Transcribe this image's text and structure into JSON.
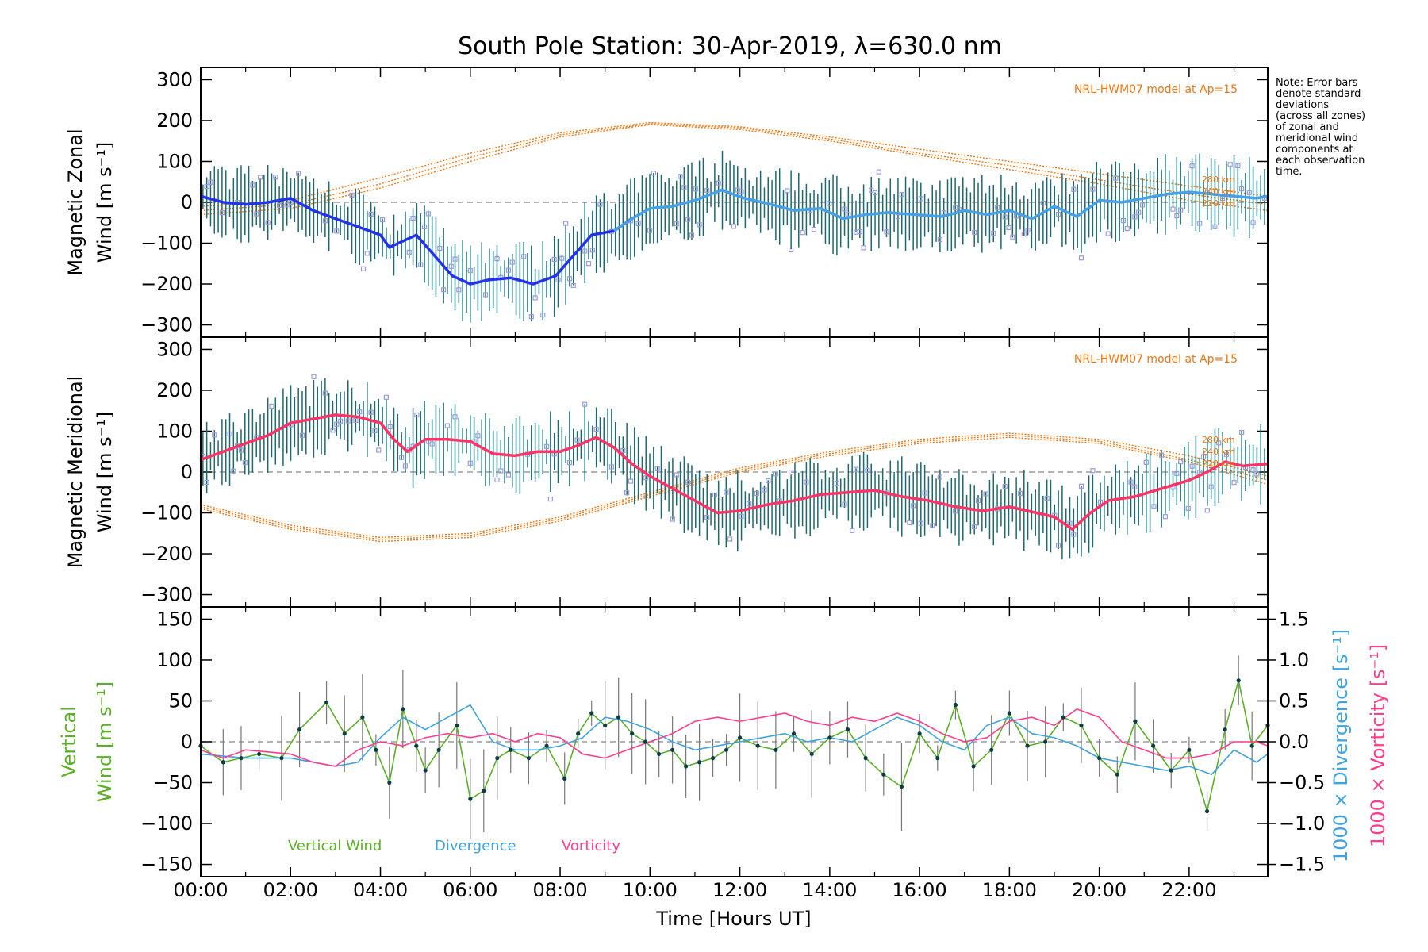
{
  "title": "South Pole Station: 30-Apr-2019, λ=630.0 nm",
  "note_lines": [
    "Note: Error bars",
    "denote standard",
    "deviations",
    "(across all zones)",
    "of zonal and",
    "meridional wind",
    "components at",
    "each observation",
    "time."
  ],
  "colors": {
    "zonal_line": "#2233ee",
    "zonal_line_late": "#44a0e8",
    "meridional_line": "#ff3366",
    "model": "#ee7711",
    "errorbar": "#1a6a70",
    "scatter": "#9c9cdc",
    "zero_line": "#888888",
    "vertical": "#5bb028",
    "divergence": "#3fa3e0",
    "vorticity": "#ff3d8c",
    "vertical_point": "#0c3b4a",
    "vertical_err": "#777777"
  },
  "chart_data": [
    {
      "panel": "zonal",
      "type": "line",
      "ylabel_lines": [
        "Magnetic Zonal",
        "Wind [m s⁻¹]"
      ],
      "ylim": [
        -330,
        330
      ],
      "yticks": [
        300,
        200,
        100,
        0,
        -100,
        -200,
        -300
      ],
      "xlim": [
        0,
        23.75
      ],
      "model_label": "NRL-HWM07 model at Ap=15",
      "model_alt_labels": [
        "280 km",
        "240 km",
        "220 km"
      ],
      "series": [
        {
          "name": "Zonal wind",
          "x": [
            0,
            0.5,
            1,
            1.5,
            2,
            2.5,
            3,
            3.5,
            4,
            4.2,
            4.5,
            4.8,
            5.2,
            5.6,
            6.0,
            6.4,
            6.9,
            7.4,
            7.9,
            8.3,
            8.7,
            9.2,
            9.6,
            10.0,
            10.5,
            11.0,
            11.6,
            12.1,
            12.7,
            13.2,
            13.8,
            14.3,
            14.8,
            15.3,
            15.9,
            16.5,
            17.0,
            17.5,
            18.0,
            18.5,
            19.0,
            19.5,
            20.0,
            20.5,
            21.0,
            21.5,
            22.0,
            22.5,
            23.0,
            23.5,
            23.75
          ],
          "y": [
            15,
            0,
            -5,
            0,
            10,
            -20,
            -40,
            -60,
            -80,
            -110,
            -95,
            -80,
            -130,
            -180,
            -200,
            -190,
            -185,
            -200,
            -180,
            -130,
            -80,
            -70,
            -40,
            -15,
            -10,
            5,
            30,
            10,
            -5,
            -20,
            -15,
            -40,
            -30,
            -25,
            -30,
            -35,
            -20,
            -30,
            -20,
            -40,
            -10,
            -35,
            5,
            0,
            10,
            20,
            25,
            20,
            15,
            10,
            15
          ]
        },
        {
          "name": "Model 280 km",
          "x": [
            0,
            2,
            4,
            6,
            8,
            10,
            12,
            14,
            16,
            18,
            20,
            22,
            23.75
          ],
          "y": [
            -10,
            5,
            60,
            120,
            170,
            195,
            185,
            160,
            130,
            100,
            70,
            40,
            15
          ]
        },
        {
          "name": "Model 240 km",
          "x": [
            0,
            2,
            4,
            6,
            8,
            10,
            12,
            14,
            16,
            18,
            20,
            22,
            23.75
          ],
          "y": [
            -20,
            -5,
            45,
            110,
            165,
            192,
            182,
            155,
            120,
            90,
            55,
            20,
            -5
          ]
        },
        {
          "name": "Model 220 km",
          "x": [
            0,
            2,
            4,
            6,
            8,
            10,
            12,
            14,
            16,
            18,
            20,
            22,
            23.75
          ],
          "y": [
            -30,
            -15,
            35,
            100,
            160,
            190,
            178,
            150,
            115,
            80,
            45,
            5,
            -20
          ]
        }
      ]
    },
    {
      "panel": "meridional",
      "type": "line",
      "ylabel_lines": [
        "Magnetic Meridional",
        "Wind [m s⁻¹]"
      ],
      "ylim": [
        -330,
        330
      ],
      "yticks": [
        300,
        200,
        100,
        0,
        -100,
        -200,
        -300
      ],
      "xlim": [
        0,
        23.75
      ],
      "model_label": "NRL-HWM07 model at Ap=15",
      "model_alt_labels": [
        "280 km",
        "240 km",
        "220 km"
      ],
      "series": [
        {
          "name": "Meridional wind",
          "x": [
            0,
            0.5,
            1,
            1.5,
            2,
            2.5,
            3,
            3.5,
            4,
            4.3,
            4.6,
            5.0,
            5.5,
            6.0,
            6.5,
            7.0,
            7.5,
            8.0,
            8.4,
            8.8,
            9.2,
            9.6,
            10.0,
            10.5,
            11.0,
            11.5,
            12.0,
            12.6,
            13.2,
            13.8,
            14.4,
            15.0,
            15.6,
            16.2,
            16.8,
            17.4,
            18.0,
            18.6,
            19.0,
            19.4,
            19.8,
            20.2,
            20.8,
            21.4,
            22.0,
            22.4,
            22.8,
            23.2,
            23.75
          ],
          "y": [
            30,
            50,
            70,
            90,
            120,
            130,
            140,
            135,
            120,
            80,
            50,
            80,
            80,
            75,
            45,
            40,
            50,
            50,
            65,
            85,
            60,
            20,
            -10,
            -40,
            -70,
            -100,
            -95,
            -80,
            -70,
            -55,
            -50,
            -45,
            -60,
            -70,
            -85,
            -95,
            -85,
            -100,
            -110,
            -140,
            -100,
            -70,
            -60,
            -40,
            -20,
            0,
            25,
            15,
            20
          ]
        },
        {
          "name": "Model 280 km",
          "x": [
            0,
            2,
            4,
            6,
            8,
            10,
            12,
            14,
            16,
            18,
            20,
            22,
            23.75
          ],
          "y": [
            -80,
            -130,
            -160,
            -150,
            -110,
            -50,
            10,
            50,
            80,
            95,
            80,
            40,
            -10
          ]
        },
        {
          "name": "Model 240 km",
          "x": [
            0,
            2,
            4,
            6,
            8,
            10,
            12,
            14,
            16,
            18,
            20,
            22,
            23.75
          ],
          "y": [
            -85,
            -135,
            -165,
            -155,
            -115,
            -55,
            5,
            45,
            75,
            90,
            75,
            30,
            -20
          ]
        },
        {
          "name": "Model 220 km",
          "x": [
            0,
            2,
            4,
            6,
            8,
            10,
            12,
            14,
            16,
            18,
            20,
            22,
            23.75
          ],
          "y": [
            -90,
            -140,
            -170,
            -160,
            -120,
            -60,
            0,
            40,
            70,
            85,
            70,
            25,
            -30
          ]
        }
      ]
    },
    {
      "panel": "vertical",
      "type": "line",
      "ylabel_lines": [
        "Vertical",
        "Wind [m s⁻¹]"
      ],
      "right_labels": [
        "1000 × Divergence [s⁻¹]",
        "1000 × Vorticity [s⁻¹]"
      ],
      "ylim": [
        -165,
        165
      ],
      "yticks": [
        150,
        100,
        50,
        0,
        -50,
        -100,
        -150
      ],
      "y2lim": [
        -1.65,
        1.65
      ],
      "y2ticks": [
        1.5,
        1.0,
        0.5,
        0.0,
        -0.5,
        -1.0,
        -1.5
      ],
      "y2tick_labels": [
        "1.5",
        "1.0",
        "0.5",
        "0.0",
        "−0.5",
        "−1.0",
        "−1.5"
      ],
      "xlim": [
        0,
        23.75
      ],
      "xticks": [
        0,
        2,
        4,
        6,
        8,
        10,
        12,
        14,
        16,
        18,
        20,
        22
      ],
      "xtick_labels": [
        "00:00",
        "02:00",
        "04:00",
        "06:00",
        "08:00",
        "10:00",
        "12:00",
        "14:00",
        "16:00",
        "18:00",
        "20:00",
        "22:00"
      ],
      "xlabel": "Time [Hours UT]",
      "legend": [
        "Vertical Wind",
        "Divergence",
        "Vorticity"
      ],
      "series": [
        {
          "name": "Vertical Wind",
          "axis": "left",
          "x": [
            0,
            0.5,
            0.9,
            1.3,
            1.8,
            2.2,
            2.8,
            3.2,
            3.6,
            3.9,
            4.2,
            4.5,
            4.8,
            5.0,
            5.3,
            5.7,
            6.0,
            6.3,
            6.6,
            6.9,
            7.3,
            7.7,
            8.1,
            8.4,
            8.7,
            9.0,
            9.3,
            9.6,
            9.9,
            10.2,
            10.5,
            10.8,
            11.1,
            11.4,
            11.7,
            12.0,
            12.4,
            12.8,
            13.2,
            13.6,
            14.0,
            14.4,
            14.8,
            15.2,
            15.6,
            16.0,
            16.4,
            16.8,
            17.2,
            17.6,
            18.0,
            18.4,
            18.8,
            19.2,
            19.6,
            20.0,
            20.4,
            20.8,
            21.2,
            21.6,
            22.0,
            22.4,
            22.8,
            23.1,
            23.4,
            23.75
          ],
          "y": [
            -5,
            -25,
            -20,
            -15,
            -20,
            15,
            48,
            10,
            30,
            -10,
            -50,
            40,
            -5,
            -35,
            -10,
            20,
            -70,
            -60,
            -20,
            -10,
            -20,
            -5,
            -45,
            10,
            35,
            20,
            30,
            10,
            0,
            -15,
            -10,
            -30,
            -25,
            -20,
            -10,
            5,
            -5,
            -10,
            10,
            -15,
            5,
            15,
            -20,
            -40,
            -55,
            10,
            -20,
            45,
            -30,
            -10,
            35,
            -5,
            0,
            30,
            20,
            -20,
            -40,
            25,
            -5,
            -35,
            -10,
            -85,
            15,
            75,
            -5,
            20
          ]
        },
        {
          "name": "Divergence",
          "axis": "right",
          "x": [
            0,
            1,
            2,
            3,
            3.5,
            4,
            4.5,
            5,
            5.5,
            6,
            6.5,
            7,
            7.5,
            8,
            8.5,
            9,
            9.5,
            10,
            10.5,
            11,
            11.5,
            12,
            12.5,
            13,
            13.5,
            14,
            14.5,
            15,
            15.5,
            16,
            16.5,
            17,
            17.5,
            18,
            18.5,
            19,
            19.5,
            20,
            20.5,
            21,
            21.5,
            22,
            22.5,
            23,
            23.5,
            23.75
          ],
          "y": [
            -0.15,
            -0.2,
            -0.2,
            -0.3,
            -0.25,
            0.05,
            0.3,
            0.15,
            0.3,
            0.45,
            0.0,
            -0.1,
            -0.1,
            -0.05,
            0.05,
            0.3,
            0.25,
            0.15,
            0.0,
            -0.1,
            -0.05,
            0.0,
            0.05,
            0.1,
            0.0,
            0.05,
            0.0,
            0.15,
            0.3,
            0.2,
            0.0,
            -0.1,
            0.2,
            0.3,
            0.1,
            0.05,
            -0.05,
            -0.2,
            -0.25,
            -0.3,
            -0.35,
            -0.3,
            -0.4,
            -0.1,
            -0.25,
            -0.15
          ]
        },
        {
          "name": "Vorticity",
          "axis": "right",
          "x": [
            0,
            0.5,
            1,
            2,
            2.5,
            3,
            3.5,
            4,
            4.5,
            5,
            5.5,
            6,
            6.5,
            7,
            7.5,
            8,
            8.5,
            9,
            9.5,
            10,
            10.5,
            11,
            11.5,
            12,
            12.5,
            13,
            13.5,
            14,
            14.5,
            15,
            15.5,
            16,
            16.5,
            17,
            17.5,
            18,
            18.5,
            19,
            19.5,
            20,
            20.5,
            21,
            21.5,
            22,
            22.5,
            23,
            23.5,
            23.75
          ],
          "y": [
            -0.1,
            -0.2,
            -0.1,
            -0.15,
            -0.25,
            -0.3,
            -0.1,
            0.0,
            -0.05,
            0.05,
            0.1,
            0.05,
            0.1,
            0.0,
            0.1,
            0.05,
            -0.15,
            -0.2,
            -0.1,
            0.0,
            0.1,
            0.25,
            0.3,
            0.25,
            0.3,
            0.35,
            0.25,
            0.2,
            0.3,
            0.25,
            0.35,
            0.25,
            0.1,
            0.0,
            0.05,
            0.25,
            0.3,
            0.2,
            0.4,
            0.3,
            0.0,
            -0.1,
            -0.2,
            -0.2,
            -0.15,
            0.0,
            0.0,
            -0.05
          ]
        }
      ],
      "markers": {
        "name": "Vertical wind samples",
        "x": [
          0,
          0.5,
          0.9,
          1.3,
          1.8,
          2.2,
          2.8,
          3.2,
          3.6,
          3.9,
          4.2,
          4.5,
          4.8,
          5.0,
          5.3,
          5.7,
          6.0,
          6.3,
          6.6,
          6.9,
          7.3,
          7.7,
          8.1,
          8.4,
          8.7,
          9.0,
          9.3,
          9.6,
          9.9,
          10.2,
          10.5,
          10.8,
          11.1,
          11.4,
          11.7,
          12.0,
          12.4,
          12.8,
          13.2,
          13.6,
          14.0,
          14.4,
          14.8,
          15.2,
          15.6,
          16.0,
          16.4,
          16.8,
          17.2,
          17.6,
          18.0,
          18.4,
          18.8,
          19.2,
          19.6,
          20.0,
          20.4,
          20.8,
          21.2,
          21.6,
          22.0,
          22.4,
          22.8,
          23.1,
          23.4,
          23.75
        ],
        "y": [
          -5,
          -25,
          -20,
          -15,
          -20,
          15,
          48,
          10,
          30,
          -10,
          -50,
          40,
          -5,
          -35,
          -10,
          20,
          -70,
          -60,
          -20,
          -10,
          -20,
          -5,
          -45,
          10,
          35,
          20,
          30,
          10,
          0,
          -15,
          -10,
          -30,
          -25,
          -20,
          -10,
          5,
          -5,
          -10,
          10,
          -15,
          5,
          15,
          -20,
          -40,
          -55,
          10,
          -20,
          45,
          -30,
          -10,
          35,
          -5,
          0,
          30,
          20,
          -20,
          -40,
          25,
          -5,
          -35,
          -10,
          -85,
          15,
          75,
          -5,
          20
        ]
      }
    }
  ]
}
